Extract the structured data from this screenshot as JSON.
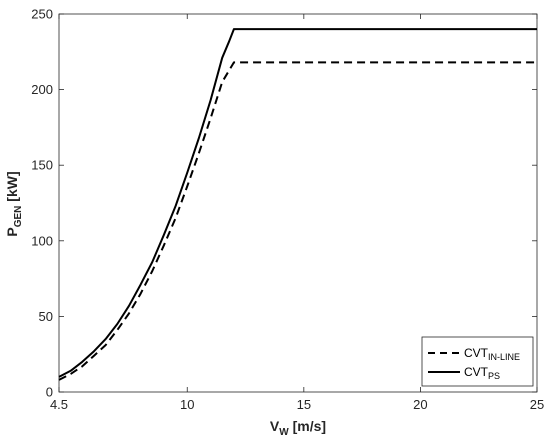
{
  "chart_data": {
    "type": "line",
    "xlabel": {
      "main": "V",
      "sub": "W",
      "unit": " [m/s]"
    },
    "ylabel": {
      "main": "P",
      "sub": "GEN",
      "unit": " [kW]"
    },
    "xlim": [
      4.5,
      25
    ],
    "ylim": [
      0,
      250
    ],
    "xticks": [
      4.5,
      10,
      15,
      20,
      25
    ],
    "xtick_labels": [
      "4.5",
      "10",
      "15",
      "20",
      "25"
    ],
    "yticks": [
      0,
      50,
      100,
      150,
      200,
      250
    ],
    "ytick_labels": [
      "0",
      "50",
      "100",
      "150",
      "200",
      "250"
    ],
    "grid": false,
    "legend_position": "bottom-right",
    "series": [
      {
        "name_main": "CVT",
        "name_sub": "IN-LINE",
        "style": "dashed",
        "color": "#000000",
        "x": [
          4.5,
          5,
          5.5,
          6,
          6.5,
          7,
          7.5,
          8,
          8.5,
          9,
          9.5,
          10,
          10.5,
          11,
          11.5,
          12,
          12.1,
          15,
          20,
          25
        ],
        "y": [
          8,
          12,
          17,
          24,
          31,
          41,
          52,
          65,
          80,
          97,
          115,
          136,
          158,
          181,
          205,
          218,
          218,
          218,
          218,
          218
        ]
      },
      {
        "name_main": "CVT",
        "name_sub": "PS",
        "style": "solid",
        "color": "#000000",
        "x": [
          4.5,
          5,
          5.5,
          6,
          6.5,
          7,
          7.5,
          8,
          8.5,
          9,
          9.5,
          10,
          10.5,
          11,
          11.5,
          11.8,
          12,
          15,
          20,
          25
        ],
        "y": [
          10,
          14,
          20,
          27,
          35,
          45,
          57,
          71,
          86,
          104,
          123,
          145,
          168,
          193,
          221,
          232,
          240,
          240,
          240,
          240
        ]
      }
    ]
  }
}
